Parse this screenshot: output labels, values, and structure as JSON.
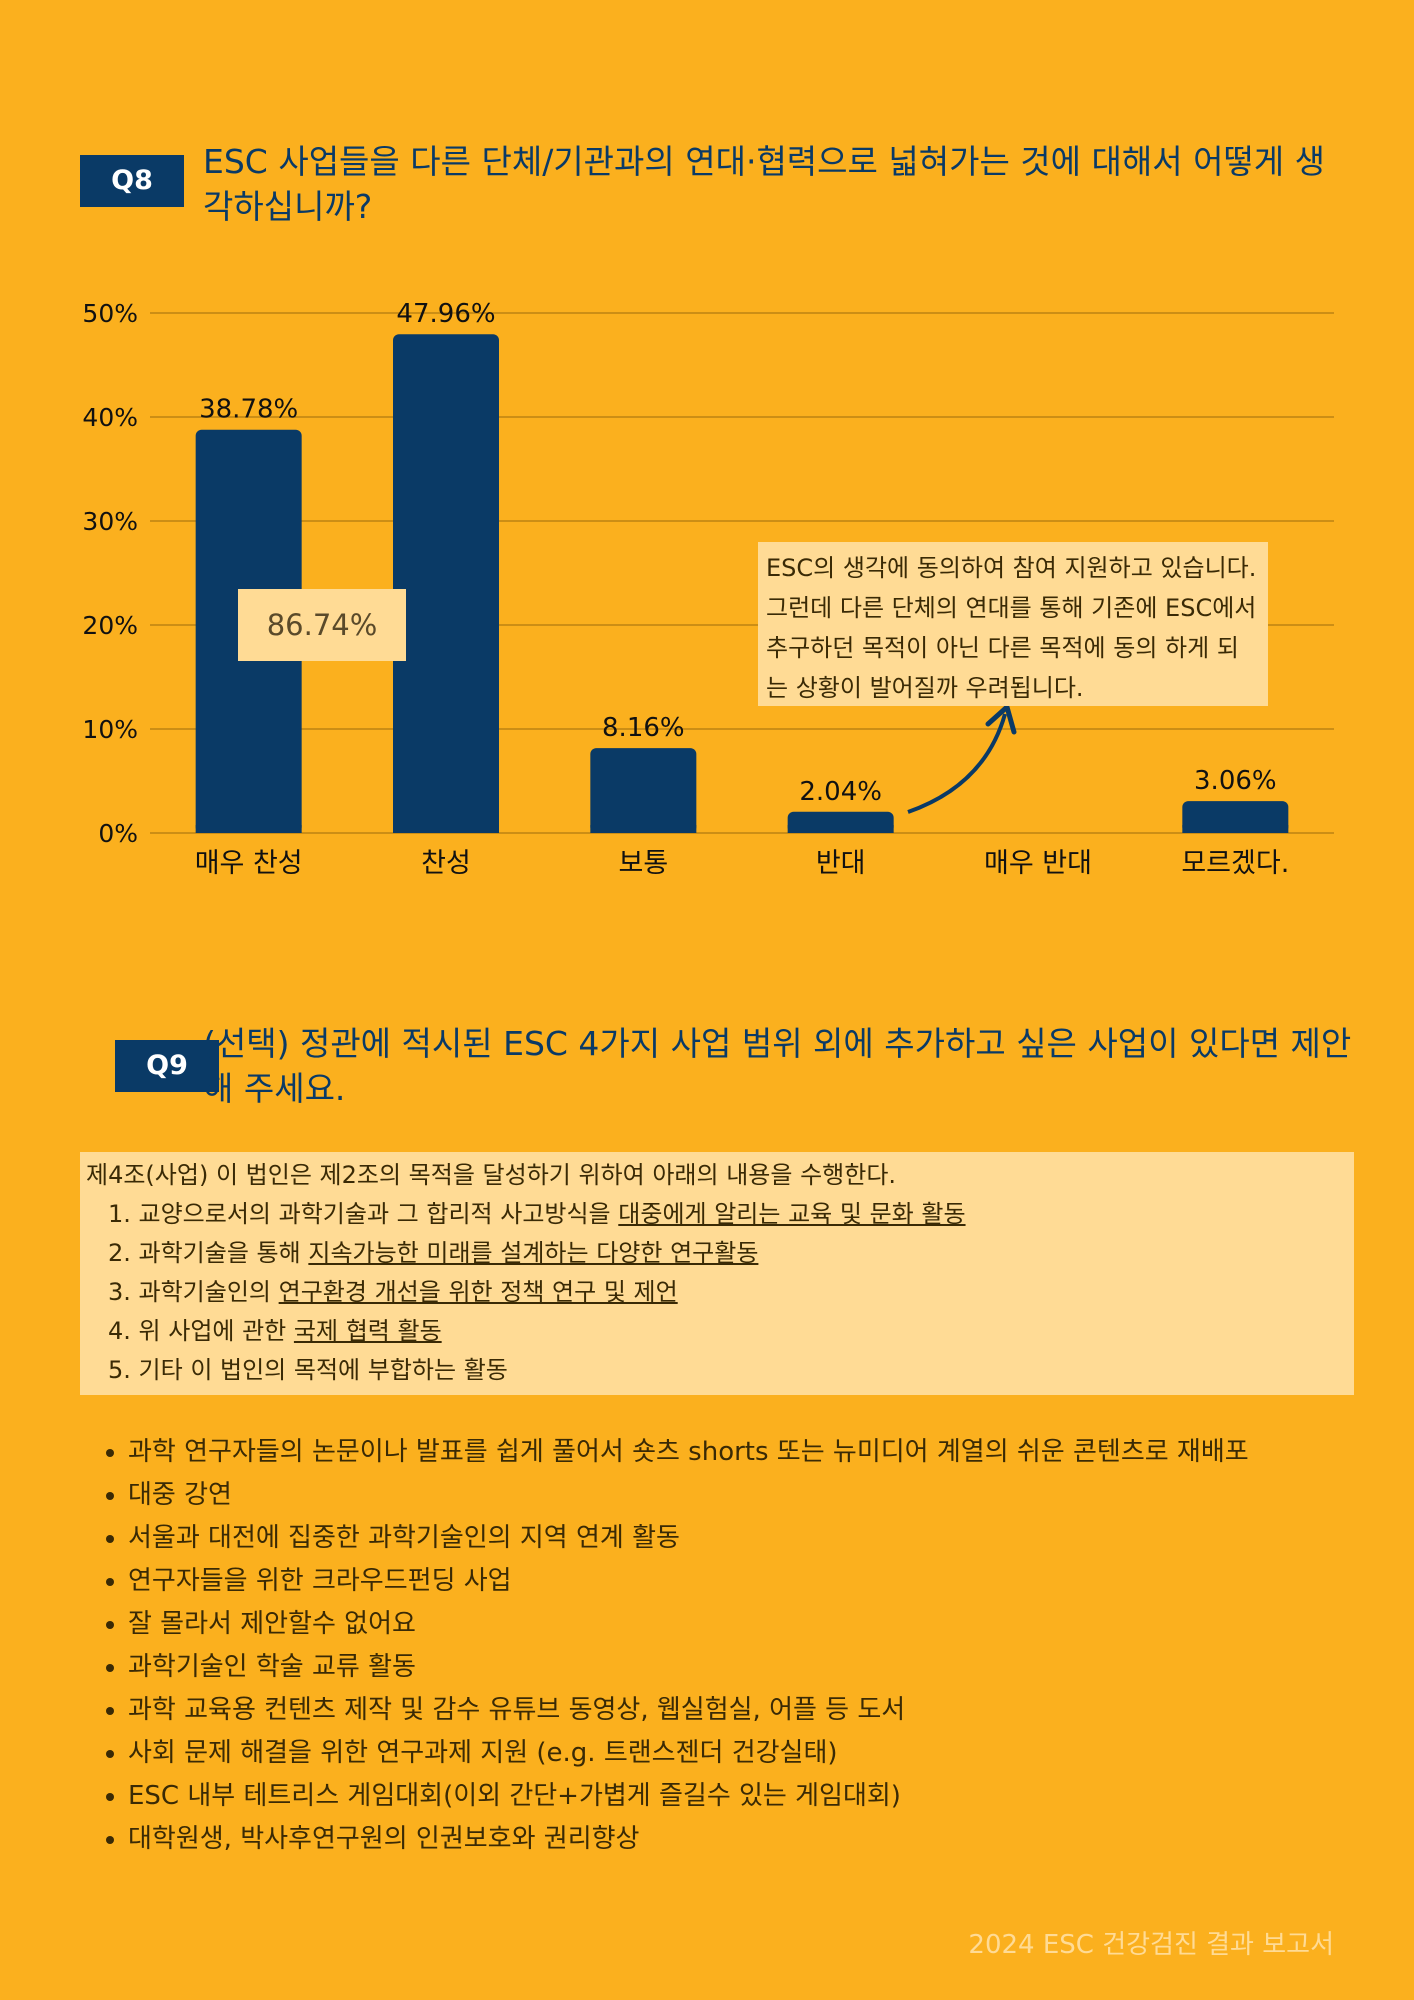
{
  "q8": {
    "badge": "Q8",
    "title": "ESC 사업들을 다른 단체/기관과의 연대·협력으로 넓혀가는 것에 대해서 어떻게 생각하십니까?",
    "sum_label": "86.74%",
    "comment": "ESC의 생각에 동의하여 참여 지원하고 있습니다. 그런데 다른 단체의 연대를 통해 기존에 ESC에서 추구하던 목적이 아닌 다른 목적에 동의 하게 되는 상황이 발어질까 우려됩니다."
  },
  "chart_data": {
    "type": "bar",
    "categories": [
      "매우 찬성",
      "찬성",
      "보통",
      "반대",
      "매우 반대",
      "모르겠다."
    ],
    "values": [
      38.78,
      47.96,
      8.16,
      2.04,
      0,
      3.06
    ],
    "value_labels": [
      "38.78%",
      "47.96%",
      "8.16%",
      "2.04%",
      "",
      "3.06%"
    ],
    "yticks": [
      "0%",
      "10%",
      "20%",
      "30%",
      "40%",
      "50%"
    ],
    "ylim": [
      0,
      50
    ],
    "grid": true,
    "bar_color": "#0A3A66"
  },
  "q9": {
    "badge": "Q9",
    "title": "(선택)  정관에 적시된 ESC 4가지 사업 범위 외에 추가하고 싶은 사업이 있다면 제안해 주세요.",
    "articles": {
      "intro": "제4조(사업) 이 법인은 제2조의 목적을 달성하기 위하여 아래의 내용을 수행한다.",
      "items": [
        {
          "pre": "1. 교양으로서의 과학기술과 그 합리적 사고방식을 ",
          "u": "대중에게 알리는 교육 및 문화 활동"
        },
        {
          "pre": "2. 과학기술을 통해 ",
          "u": "지속가능한 미래를 설계하는 다양한 연구활동"
        },
        {
          "pre": "3. 과학기술인의 ",
          "u": "연구환경 개선을 위한 정책 연구 및 제언"
        },
        {
          "pre": "4. 위 사업에 관한 ",
          "u": "국제 협력 활동"
        },
        {
          "pre": "5. 기타 이 법인의 목적에 부합하는 활동",
          "u": ""
        }
      ]
    },
    "responses": [
      "과학 연구자들의 논문이나 발표를 쉽게 풀어서 숏츠 shorts 또는 뉴미디어 계열의 쉬운 콘텐츠로 재배포",
      "대중 강연",
      "서울과 대전에 집중한 과학기술인의  지역 연계 활동",
      "연구자들을 위한 크라우드펀딩 사업",
      "잘 몰라서 제안할수 없어요",
      "과학기술인 학술 교류 활동",
      "과학 교육용 컨텐츠 제작 및 감수 유튜브 동영상, 웹실험실, 어플 등 도서",
      "사회 문제 해결을 위한 연구과제 지원 (e.g. 트랜스젠더 건강실태)",
      "ESC 내부 테트리스 게임대회(이외 간단+가볍게 즐길수 있는 게임대회)",
      "대학원생, 박사후연구원의 인권보호와 권리향상"
    ]
  },
  "footer": "2024 ESC 건강검진 결과 보고서"
}
